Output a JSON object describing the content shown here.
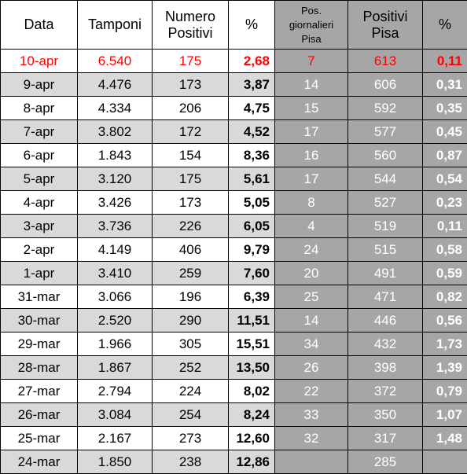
{
  "headers": {
    "data": "Data",
    "tamponi": "Tamponi",
    "numero_positivi_1": "Numero",
    "numero_positivi_2": "Positivi",
    "pct1": "%",
    "pos_giornalieri_1": "Pos.",
    "pos_giornalieri_2": "giornalieri",
    "pos_giornalieri_3": "Pisa",
    "positivi_pisa_1": "Positivi",
    "positivi_pisa_2": "Pisa",
    "pct2": "%"
  },
  "rows": [
    {
      "data": "10-apr",
      "tamponi": "6.540",
      "positivi": "175",
      "pct1": "2,68",
      "pos_giorn": "7",
      "positivi_pisa": "613",
      "pct2": "0,11"
    },
    {
      "data": "9-apr",
      "tamponi": "4.476",
      "positivi": "173",
      "pct1": "3,87",
      "pos_giorn": "14",
      "positivi_pisa": "606",
      "pct2": "0,31"
    },
    {
      "data": "8-apr",
      "tamponi": "4.334",
      "positivi": "206",
      "pct1": "4,75",
      "pos_giorn": "15",
      "positivi_pisa": "592",
      "pct2": "0,35"
    },
    {
      "data": "7-apr",
      "tamponi": "3.802",
      "positivi": "172",
      "pct1": "4,52",
      "pos_giorn": "17",
      "positivi_pisa": "577",
      "pct2": "0,45"
    },
    {
      "data": "6-apr",
      "tamponi": "1.843",
      "positivi": "154",
      "pct1": "8,36",
      "pos_giorn": "16",
      "positivi_pisa": "560",
      "pct2": "0,87"
    },
    {
      "data": "5-apr",
      "tamponi": "3.120",
      "positivi": "175",
      "pct1": "5,61",
      "pos_giorn": "17",
      "positivi_pisa": "544",
      "pct2": "0,54"
    },
    {
      "data": "4-apr",
      "tamponi": "3.426",
      "positivi": "173",
      "pct1": "5,05",
      "pos_giorn": "8",
      "positivi_pisa": "527",
      "pct2": "0,23"
    },
    {
      "data": "3-apr",
      "tamponi": "3.736",
      "positivi": "226",
      "pct1": "6,05",
      "pos_giorn": "4",
      "positivi_pisa": "519",
      "pct2": "0,11"
    },
    {
      "data": "2-apr",
      "tamponi": "4.149",
      "positivi": "406",
      "pct1": "9,79",
      "pos_giorn": "24",
      "positivi_pisa": "515",
      "pct2": "0,58"
    },
    {
      "data": "1-apr",
      "tamponi": "3.410",
      "positivi": "259",
      "pct1": "7,60",
      "pos_giorn": "20",
      "positivi_pisa": "491",
      "pct2": "0,59"
    },
    {
      "data": "31-mar",
      "tamponi": "3.066",
      "positivi": "196",
      "pct1": "6,39",
      "pos_giorn": "25",
      "positivi_pisa": "471",
      "pct2": "0,82"
    },
    {
      "data": "30-mar",
      "tamponi": "2.520",
      "positivi": "290",
      "pct1": "11,51",
      "pos_giorn": "14",
      "positivi_pisa": "446",
      "pct2": "0,56"
    },
    {
      "data": "29-mar",
      "tamponi": "1.966",
      "positivi": "305",
      "pct1": "15,51",
      "pos_giorn": "34",
      "positivi_pisa": "432",
      "pct2": "1,73"
    },
    {
      "data": "28-mar",
      "tamponi": "1.867",
      "positivi": "252",
      "pct1": "13,50",
      "pos_giorn": "26",
      "positivi_pisa": "398",
      "pct2": "1,39"
    },
    {
      "data": "27-mar",
      "tamponi": "2.794",
      "positivi": "224",
      "pct1": "8,02",
      "pos_giorn": "22",
      "positivi_pisa": "372",
      "pct2": "0,79"
    },
    {
      "data": "26-mar",
      "tamponi": "3.084",
      "positivi": "254",
      "pct1": "8,24",
      "pos_giorn": "33",
      "positivi_pisa": "350",
      "pct2": "1,07"
    },
    {
      "data": "25-mar",
      "tamponi": "2.167",
      "positivi": "273",
      "pct1": "12,60",
      "pos_giorn": "32",
      "positivi_pisa": "317",
      "pct2": "1,48"
    },
    {
      "data": "24-mar",
      "tamponi": "1.850",
      "positivi": "238",
      "pct1": "12,86",
      "pos_giorn": "",
      "positivi_pisa": "285",
      "pct2": ""
    }
  ],
  "colors": {
    "highlight_text": "#ff0000",
    "light_gray": "#d9d9d9",
    "dark_gray": "#a6a6a6",
    "white_text": "#ffffff"
  }
}
